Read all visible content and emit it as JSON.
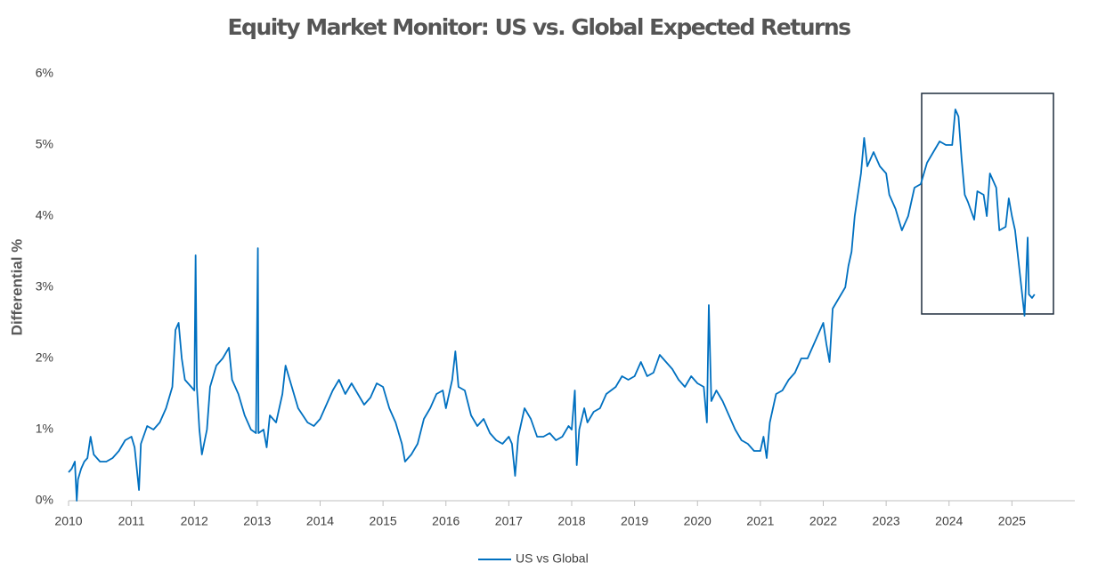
{
  "chart_data": {
    "type": "line",
    "title": "Equity Market Monitor: US vs. Global Expected Returns",
    "y_label": "Differential %",
    "x": [
      2010.0,
      2010.05,
      2010.1,
      2010.13,
      2010.15,
      2010.2,
      2010.25,
      2010.3,
      2010.35,
      2010.4,
      2010.5,
      2010.6,
      2010.7,
      2010.8,
      2010.9,
      2011.0,
      2011.05,
      2011.12,
      2011.15,
      2011.25,
      2011.35,
      2011.45,
      2011.55,
      2011.65,
      2011.7,
      2011.75,
      2011.8,
      2011.85,
      2011.95,
      2012.0,
      2012.02,
      2012.04,
      2012.08,
      2012.12,
      2012.2,
      2012.25,
      2012.35,
      2012.45,
      2012.55,
      2012.6,
      2012.7,
      2012.8,
      2012.9,
      2012.98,
      2013.01,
      2013.02,
      2013.1,
      2013.15,
      2013.2,
      2013.3,
      2013.4,
      2013.45,
      2013.55,
      2013.65,
      2013.8,
      2013.9,
      2014.0,
      2014.1,
      2014.2,
      2014.3,
      2014.4,
      2014.5,
      2014.6,
      2014.7,
      2014.8,
      2014.9,
      2015.0,
      2015.1,
      2015.2,
      2015.3,
      2015.35,
      2015.45,
      2015.55,
      2015.65,
      2015.75,
      2015.85,
      2015.95,
      2016.0,
      2016.1,
      2016.15,
      2016.2,
      2016.3,
      2016.4,
      2016.5,
      2016.6,
      2016.7,
      2016.8,
      2016.9,
      2017.0,
      2017.05,
      2017.1,
      2017.15,
      2017.25,
      2017.35,
      2017.45,
      2017.55,
      2017.65,
      2017.75,
      2017.85,
      2017.95,
      2018.0,
      2018.05,
      2018.08,
      2018.12,
      2018.2,
      2018.25,
      2018.35,
      2018.45,
      2018.55,
      2018.7,
      2018.8,
      2018.9,
      2019.0,
      2019.1,
      2019.2,
      2019.3,
      2019.4,
      2019.5,
      2019.6,
      2019.7,
      2019.8,
      2019.9,
      2020.0,
      2020.1,
      2020.15,
      2020.18,
      2020.22,
      2020.3,
      2020.4,
      2020.5,
      2020.6,
      2020.7,
      2020.8,
      2020.9,
      2021.0,
      2021.05,
      2021.1,
      2021.15,
      2021.25,
      2021.35,
      2021.45,
      2021.55,
      2021.65,
      2021.75,
      2021.85,
      2021.95,
      2022.0,
      2022.05,
      2022.1,
      2022.15,
      2022.25,
      2022.35,
      2022.4,
      2022.45,
      2022.5,
      2022.55,
      2022.6,
      2022.65,
      2022.7,
      2022.8,
      2022.9,
      2023.0,
      2023.05,
      2023.15,
      2023.25,
      2023.35,
      2023.45,
      2023.55,
      2023.65,
      2023.75,
      2023.85,
      2023.95,
      2024.05,
      2024.1,
      2024.15,
      2024.2,
      2024.25,
      2024.3,
      2024.4,
      2024.45,
      2024.55,
      2024.6,
      2024.65,
      2024.75,
      2024.8,
      2024.9,
      2024.95,
      2025.0,
      2025.05,
      2025.1,
      2025.15,
      2025.2,
      2025.22,
      2025.25,
      2025.27,
      2025.32,
      2025.36
    ],
    "series": [
      {
        "name": "US vs Global",
        "color": "#0070c0",
        "values": [
          0.4,
          0.45,
          0.55,
          0.0,
          0.3,
          0.45,
          0.55,
          0.6,
          0.9,
          0.65,
          0.55,
          0.55,
          0.6,
          0.7,
          0.85,
          0.9,
          0.75,
          0.15,
          0.8,
          1.05,
          1.0,
          1.1,
          1.3,
          1.6,
          2.4,
          2.5,
          2.0,
          1.7,
          1.6,
          1.55,
          3.45,
          1.6,
          1.0,
          0.65,
          1.0,
          1.6,
          1.9,
          2.0,
          2.15,
          1.7,
          1.5,
          1.2,
          1.0,
          0.95,
          3.55,
          0.95,
          1.0,
          0.75,
          1.2,
          1.1,
          1.5,
          1.9,
          1.6,
          1.3,
          1.1,
          1.05,
          1.15,
          1.35,
          1.55,
          1.7,
          1.5,
          1.65,
          1.5,
          1.35,
          1.45,
          1.65,
          1.6,
          1.3,
          1.1,
          0.8,
          0.55,
          0.65,
          0.8,
          1.15,
          1.3,
          1.5,
          1.55,
          1.3,
          1.7,
          2.1,
          1.6,
          1.55,
          1.2,
          1.05,
          1.15,
          0.95,
          0.85,
          0.8,
          0.9,
          0.8,
          0.35,
          0.9,
          1.3,
          1.15,
          0.9,
          0.9,
          0.95,
          0.85,
          0.9,
          1.05,
          1.0,
          1.55,
          0.5,
          1.0,
          1.3,
          1.1,
          1.25,
          1.3,
          1.5,
          1.6,
          1.75,
          1.7,
          1.75,
          1.95,
          1.75,
          1.8,
          2.05,
          1.95,
          1.85,
          1.7,
          1.6,
          1.75,
          1.65,
          1.6,
          1.1,
          2.75,
          1.4,
          1.55,
          1.4,
          1.2,
          1.0,
          0.85,
          0.8,
          0.7,
          0.7,
          0.9,
          0.6,
          1.1,
          1.5,
          1.55,
          1.7,
          1.8,
          2.0,
          2.0,
          2.2,
          2.4,
          2.5,
          2.2,
          1.95,
          2.7,
          2.85,
          3.0,
          3.3,
          3.5,
          4.0,
          4.3,
          4.6,
          5.1,
          4.7,
          4.9,
          4.7,
          4.6,
          4.3,
          4.1,
          3.8,
          4.0,
          4.4,
          4.45,
          4.75,
          4.9,
          5.05,
          5.0,
          5.0,
          5.5,
          5.4,
          4.8,
          4.3,
          4.2,
          3.95,
          4.35,
          4.3,
          4.0,
          4.6,
          4.4,
          3.8,
          3.85,
          4.25,
          4.0,
          3.8,
          3.4,
          3.0,
          2.6,
          3.0,
          3.7,
          2.9,
          2.85,
          2.9
        ]
      }
    ],
    "xlim": [
      2010,
      2026
    ],
    "xticks": [
      2010,
      2011,
      2012,
      2013,
      2014,
      2015,
      2016,
      2017,
      2018,
      2019,
      2020,
      2021,
      2022,
      2023,
      2024,
      2025
    ],
    "ylim": [
      0,
      6
    ],
    "yticks": [
      {
        "value": 0,
        "label": "0%"
      },
      {
        "value": 1,
        "label": "1%"
      },
      {
        "value": 2,
        "label": "2%"
      },
      {
        "value": 3,
        "label": "3%"
      },
      {
        "value": 4,
        "label": "4%"
      },
      {
        "value": 5,
        "label": "5%"
      },
      {
        "value": 6,
        "label": "6%"
      }
    ],
    "grid": false,
    "legend": "bottom"
  }
}
